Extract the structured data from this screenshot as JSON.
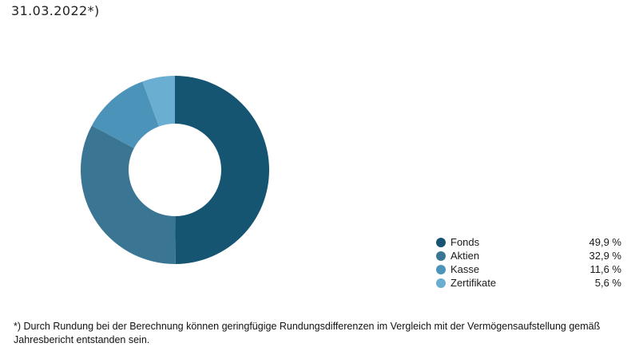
{
  "heading": "31.03.2022*)",
  "chart_data": {
    "type": "pie",
    "categories": [
      "Fonds",
      "Aktien",
      "Kasse",
      "Zertifikate"
    ],
    "values": [
      49.9,
      32.9,
      11.6,
      5.6
    ],
    "value_labels": [
      "49,9 %",
      "32,9 %",
      "11,6 %",
      "5,6 %"
    ],
    "colors": [
      "#165572",
      "#3a7694",
      "#4b93b8",
      "#6aaed2"
    ],
    "donut": true,
    "legend_position": "bottom-right"
  },
  "footnote": "*) Durch Rundung bei der Berechnung können geringfügige Rundungsdifferenzen im Vergleich mit der Vermögensaufstellung gemäß Jahresbericht entstanden sein."
}
